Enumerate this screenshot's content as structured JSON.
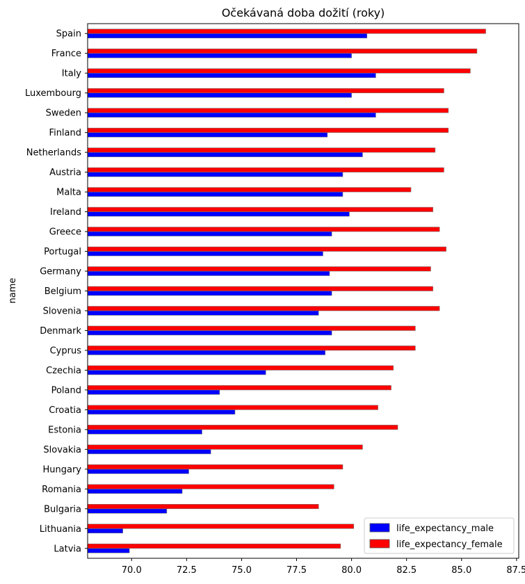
{
  "chart_data": {
    "type": "bar",
    "orientation": "horizontal",
    "title": "Očekávaná doba dožití (roky)",
    "xlabel": "",
    "ylabel": "name",
    "xlim": [
      68.0,
      87.6
    ],
    "x_ticks": [
      70.0,
      72.5,
      75.0,
      77.5,
      80.0,
      82.5,
      85.0,
      87.5
    ],
    "x_tick_labels": [
      "70.0",
      "72.5",
      "75.0",
      "77.5",
      "80.0",
      "82.5",
      "85.0",
      "87.5"
    ],
    "grid": false,
    "legend_position": "bottom-right",
    "categories": [
      "Spain",
      "France",
      "Italy",
      "Luxembourg",
      "Sweden",
      "Finland",
      "Netherlands",
      "Austria",
      "Malta",
      "Ireland",
      "Greece",
      "Portugal",
      "Germany",
      "Belgium",
      "Slovenia",
      "Denmark",
      "Cyprus",
      "Czechia",
      "Poland",
      "Croatia",
      "Estonia",
      "Slovakia",
      "Hungary",
      "Romania",
      "Bulgaria",
      "Lithuania",
      "Latvia"
    ],
    "series": [
      {
        "name": "life_expectancy_male",
        "color": "#0000ff",
        "values": [
          80.7,
          80.0,
          81.1,
          80.0,
          81.1,
          78.9,
          80.5,
          79.6,
          79.6,
          79.9,
          79.1,
          78.7,
          79.0,
          79.1,
          78.5,
          79.1,
          78.8,
          76.1,
          74.0,
          74.7,
          73.2,
          73.6,
          72.6,
          72.3,
          71.6,
          69.6,
          69.9
        ]
      },
      {
        "name": "life_expectancy_female",
        "color": "#ff0000",
        "values": [
          86.1,
          85.7,
          85.4,
          84.2,
          84.4,
          84.4,
          83.8,
          84.2,
          82.7,
          83.7,
          84.0,
          84.3,
          83.6,
          83.7,
          84.0,
          82.9,
          82.9,
          81.9,
          81.8,
          81.2,
          82.1,
          80.5,
          79.6,
          79.2,
          78.5,
          80.1,
          79.5
        ]
      }
    ]
  }
}
